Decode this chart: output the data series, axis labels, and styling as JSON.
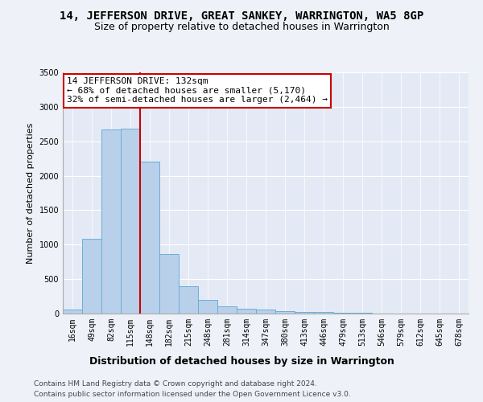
{
  "title": "14, JEFFERSON DRIVE, GREAT SANKEY, WARRINGTON, WA5 8GP",
  "subtitle": "Size of property relative to detached houses in Warrington",
  "xlabel": "Distribution of detached houses by size in Warrington",
  "ylabel": "Number of detached properties",
  "bar_labels": [
    "16sqm",
    "49sqm",
    "82sqm",
    "115sqm",
    "148sqm",
    "182sqm",
    "215sqm",
    "248sqm",
    "281sqm",
    "314sqm",
    "347sqm",
    "380sqm",
    "413sqm",
    "446sqm",
    "479sqm",
    "513sqm",
    "546sqm",
    "579sqm",
    "612sqm",
    "645sqm",
    "678sqm"
  ],
  "bar_values": [
    55,
    1090,
    2670,
    2680,
    2200,
    860,
    400,
    200,
    100,
    75,
    55,
    35,
    25,
    18,
    12,
    8,
    5,
    4,
    3,
    2,
    1
  ],
  "bar_color": "#b8d0ea",
  "bar_edge_color": "#6baed6",
  "ylim": [
    0,
    3500
  ],
  "yticks": [
    0,
    500,
    1000,
    1500,
    2000,
    2500,
    3000,
    3500
  ],
  "red_line_x": 3.5,
  "annotation_text": "14 JEFFERSON DRIVE: 132sqm\n← 68% of detached houses are smaller (5,170)\n32% of semi-detached houses are larger (2,464) →",
  "annotation_box_color": "#ffffff",
  "annotation_box_edge": "#cc0000",
  "vline_color": "#cc0000",
  "footer_line1": "Contains HM Land Registry data © Crown copyright and database right 2024.",
  "footer_line2": "Contains public sector information licensed under the Open Government Licence v3.0.",
  "background_color": "#eef2f8",
  "plot_background": "#e4eaf5",
  "grid_color": "#ffffff",
  "title_fontsize": 10,
  "subtitle_fontsize": 9,
  "xlabel_fontsize": 9,
  "ylabel_fontsize": 8,
  "tick_fontsize": 7,
  "annotation_fontsize": 8,
  "footer_fontsize": 6.5
}
